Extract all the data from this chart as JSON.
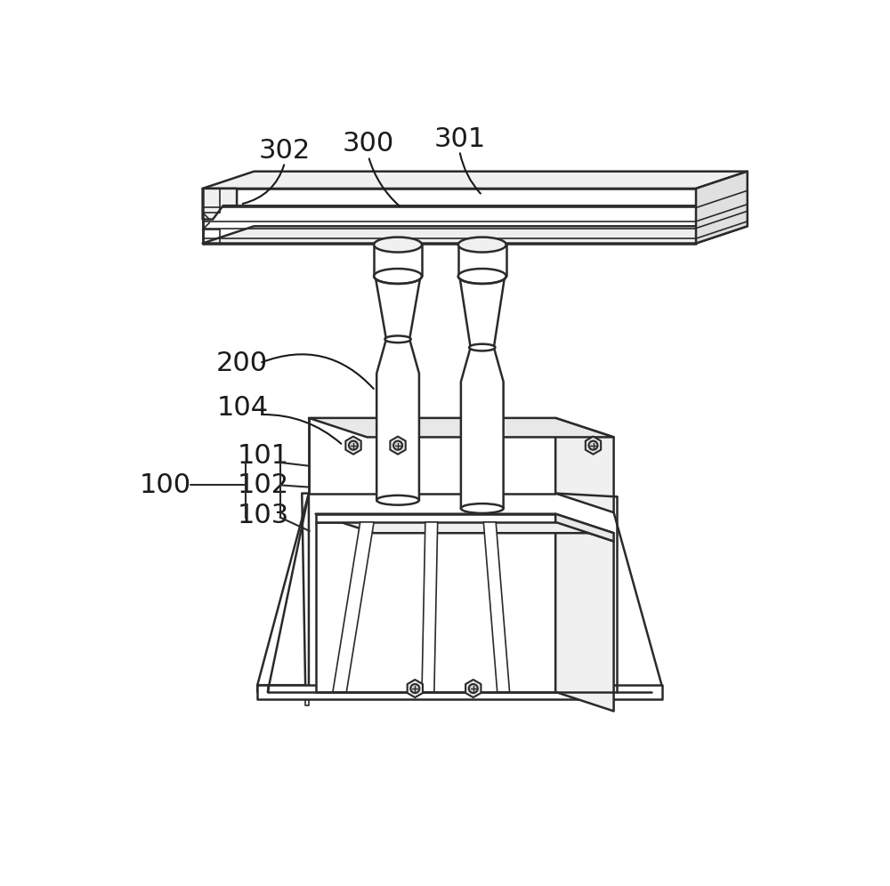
{
  "bg_color": "#ffffff",
  "lc": "#2a2a2a",
  "lw": 1.8,
  "lw_thin": 1.2,
  "font_size": 22
}
